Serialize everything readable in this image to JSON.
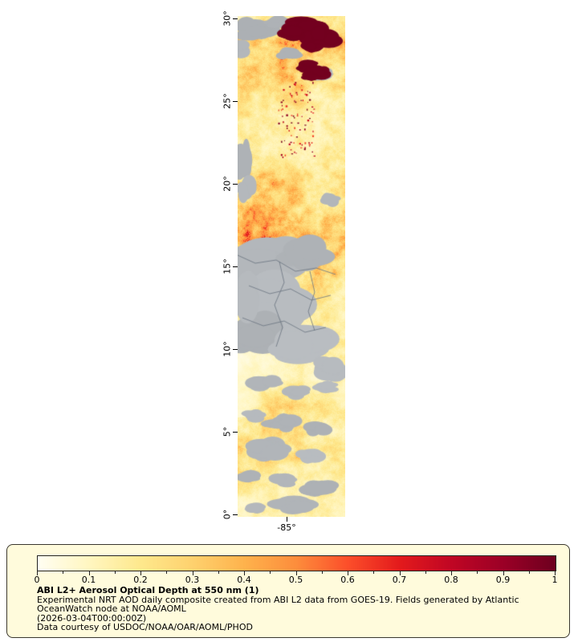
{
  "map": {
    "lat_tick_labels": [
      "30°",
      "25°",
      "20°",
      "15°",
      "10°",
      "5°",
      "0°"
    ],
    "lon_tick_labels": [
      "-85°"
    ]
  },
  "colorbar": {
    "min": 0,
    "max": 1,
    "tick_labels": [
      "0",
      "0.1",
      "0.2",
      "0.3",
      "0.4",
      "0.5",
      "0.6",
      "0.7",
      "0.8",
      "0.9",
      "1"
    ],
    "palette": [
      {
        "v": 0,
        "c": "#fffef2"
      },
      {
        "v": 0.1,
        "c": "#fff6c0"
      },
      {
        "v": 0.2,
        "c": "#fee88c"
      },
      {
        "v": 0.3,
        "c": "#fed16e"
      },
      {
        "v": 0.4,
        "c": "#feb24c"
      },
      {
        "v": 0.5,
        "c": "#fd8d3c"
      },
      {
        "v": 0.6,
        "c": "#fc4e2a"
      },
      {
        "v": 0.7,
        "c": "#e31a1c"
      },
      {
        "v": 0.8,
        "c": "#c00624"
      },
      {
        "v": 0.9,
        "c": "#9b0026"
      },
      {
        "v": 1,
        "c": "#6e001f"
      }
    ]
  },
  "caption": {
    "title": "ABI L2+ Aerosol Optical Depth at 550 nm (1)",
    "lines": [
      "Experimental NRT AOD daily composite created from ABI L2 data from GOES-19. Fields generated by Atlantic",
      "OceanWatch node at NOAA/AOML",
      "(2026-03-04T00:00:00Z)",
      "Data courtesy of USDOC/NOAA/OAR/AOML/PHOD"
    ]
  },
  "colors": {
    "page_bg": "#ffffff",
    "legend_bg": "#fffbdc",
    "legend_border": "#3a372e",
    "axis": "#000000",
    "land_gray": "#b2b6ba",
    "border_line": "#6a7480",
    "smoke": "#73001f"
  }
}
